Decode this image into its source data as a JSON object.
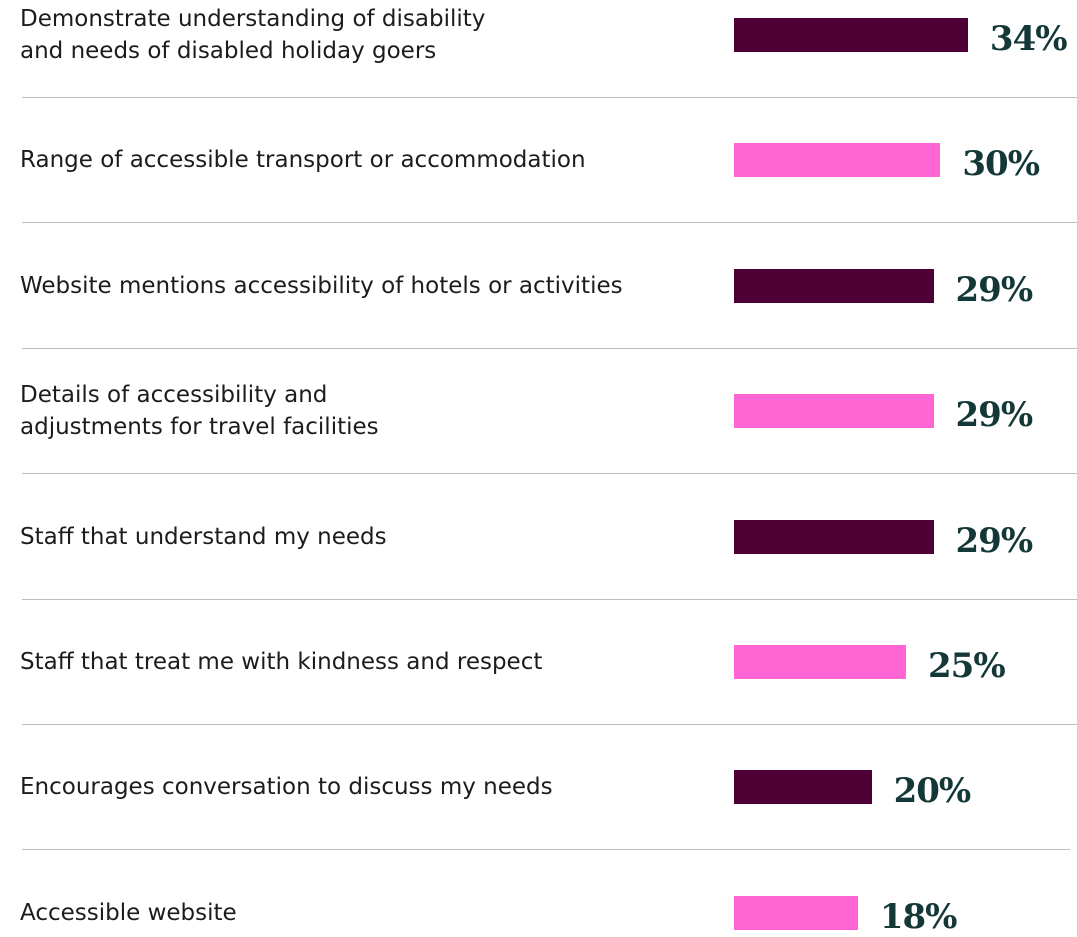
{
  "chart_data": {
    "type": "bar",
    "orientation": "horizontal",
    "categories": [
      "Demonstrate understanding of disability\nand needs of disabled holiday goers",
      "Range of accessible transport or accommodation",
      "Website mentions accessibility of hotels or activities",
      "Details of accessibility and\nadjustments for travel facilities",
      "Staff that understand my needs",
      "Staff that treat me with kindness and respect",
      "Encourages conversation to discuss my needs",
      "Accessible website"
    ],
    "values": [
      34,
      30,
      29,
      29,
      29,
      25,
      20,
      18
    ],
    "value_labels": [
      "34%",
      "30%",
      "29%",
      "29%",
      "29%",
      "25%",
      "20%",
      "18%"
    ],
    "colors": [
      "#4e0036",
      "#ff66d4",
      "#4e0036",
      "#ff66d4",
      "#4e0036",
      "#ff66d4",
      "#4e0036",
      "#ff66d4"
    ]
  }
}
